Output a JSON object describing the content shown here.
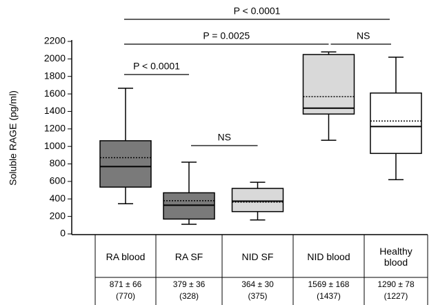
{
  "chart_data": {
    "type": "box",
    "ylabel": "Soluble RAGE (pg/ml)",
    "categories": [
      "RA blood",
      "RA SF",
      "NID SF",
      "NID blood",
      "Healthy blood"
    ],
    "colors": [
      "#7a7a7a",
      "#7a7a7a",
      "#d9d9d9",
      "#d9d9d9",
      "#ffffff"
    ],
    "whisker_low": [
      345,
      110,
      160,
      1070,
      620
    ],
    "q1": [
      535,
      170,
      255,
      1370,
      920
    ],
    "median": [
      770,
      328,
      375,
      1437,
      1227
    ],
    "q3": [
      1065,
      470,
      520,
      2050,
      1610
    ],
    "whisker_high": [
      1665,
      820,
      590,
      2080,
      2020
    ],
    "mean": [
      871,
      379,
      364,
      1569,
      1290
    ],
    "mean_labels": [
      "871 ± 66",
      "379 ± 36",
      "364 ± 30",
      "1569 ± 168",
      "1290 ± 78"
    ],
    "median_labels": [
      "(770)",
      "(328)",
      "(375)",
      "(1437)",
      "(1227)"
    ],
    "annotations": [
      "P < 0.0001",
      "P = 0.0025",
      "P < 0.0001",
      "NS",
      "NS"
    ],
    "ylim": [
      0,
      2200
    ],
    "yticks": [
      0,
      200,
      400,
      600,
      800,
      1000,
      1200,
      1400,
      1600,
      1800,
      2000,
      2200
    ]
  }
}
